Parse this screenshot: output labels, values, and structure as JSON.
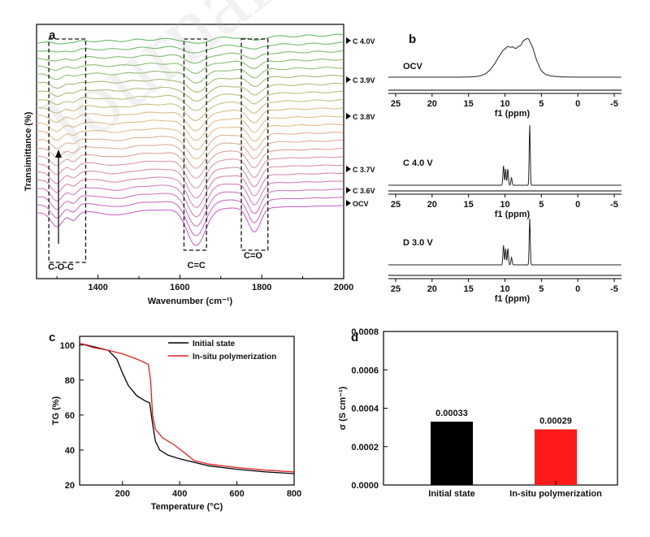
{
  "watermark": "Journal Pre-proof",
  "chart_data": [
    {
      "panel": "a",
      "type": "line",
      "title": "",
      "xlabel": "Wavenumber (cm⁻¹)",
      "ylabel": "Transimittance (%)",
      "xlim": [
        1250,
        2000
      ],
      "xticks": [
        1400,
        1600,
        1800,
        2000
      ],
      "series_labels": [
        "C 4.0V",
        "C 3.9V",
        "C 3.8V",
        "C 3.7V",
        "C 3.6V",
        "OCV"
      ],
      "curve_count": 22,
      "color_gradient": [
        "#cc66cc",
        "#e6c08a",
        "#66bb66"
      ],
      "annotations": [
        "C-O-C",
        "C=C",
        "C=O"
      ],
      "annotation_ranges": [
        [
          1280,
          1370
        ],
        [
          1610,
          1665
        ],
        [
          1750,
          1815
        ]
      ],
      "arrow": "up"
    },
    {
      "panel": "b",
      "type": "line",
      "xlabel": "f1 (ppm)",
      "xlim": [
        26,
        -6
      ],
      "xticks": [
        25,
        20,
        15,
        10,
        5,
        0,
        -5
      ],
      "spectra": [
        {
          "name": "OCV",
          "peaks_ppm": [
            9.6,
            6.8
          ],
          "shape": "broad"
        },
        {
          "name": "C 4.0 V",
          "peaks_ppm": [
            10.2,
            9.7,
            9.0,
            6.6
          ],
          "shape": "sharp"
        },
        {
          "name": "D 3.0 V",
          "peaks_ppm": [
            10.2,
            9.7,
            9.0,
            6.6
          ],
          "shape": "sharp"
        }
      ]
    },
    {
      "panel": "c",
      "type": "line",
      "xlabel": "Temperature (°C)",
      "ylabel": "TG (%)",
      "xlim": [
        50,
        800
      ],
      "ylim": [
        20,
        105
      ],
      "xticks": [
        200,
        400,
        600,
        800
      ],
      "yticks": [
        20,
        40,
        60,
        80,
        100
      ],
      "legend_position": "top-right",
      "series": [
        {
          "name": "Initial state",
          "color": "#000000",
          "x": [
            50,
            100,
            150,
            180,
            200,
            220,
            250,
            280,
            295,
            305,
            315,
            330,
            360,
            400,
            500,
            600,
            700,
            800
          ],
          "y": [
            101,
            99,
            97,
            92,
            84,
            77,
            71,
            68,
            67,
            55,
            45,
            40,
            37,
            35,
            31,
            29,
            27.5,
            26.5
          ]
        },
        {
          "name": "In-situ polymerization",
          "color": "#e02020",
          "x": [
            50,
            100,
            150,
            200,
            250,
            290,
            298,
            305,
            315,
            340,
            380,
            420,
            450,
            500,
            600,
            700,
            800
          ],
          "y": [
            101,
            98.5,
            97,
            95,
            92,
            89,
            80,
            60,
            52,
            47,
            43,
            38,
            34,
            32,
            30,
            28.5,
            27.5
          ]
        }
      ]
    },
    {
      "panel": "d",
      "type": "bar",
      "ylabel": "σ (S cm⁻¹)",
      "ylim": [
        0,
        0.0008
      ],
      "yticks": [
        "0.0000",
        "0.0002",
        "0.0004",
        "0.0006",
        "0.0008"
      ],
      "categories": [
        "Initial state",
        "In-situ polymerization"
      ],
      "values": [
        0.00033,
        0.00029
      ],
      "value_labels": [
        "0.00033",
        "0.00029"
      ],
      "colors": [
        "#000000",
        "#ff1a1a"
      ]
    }
  ]
}
